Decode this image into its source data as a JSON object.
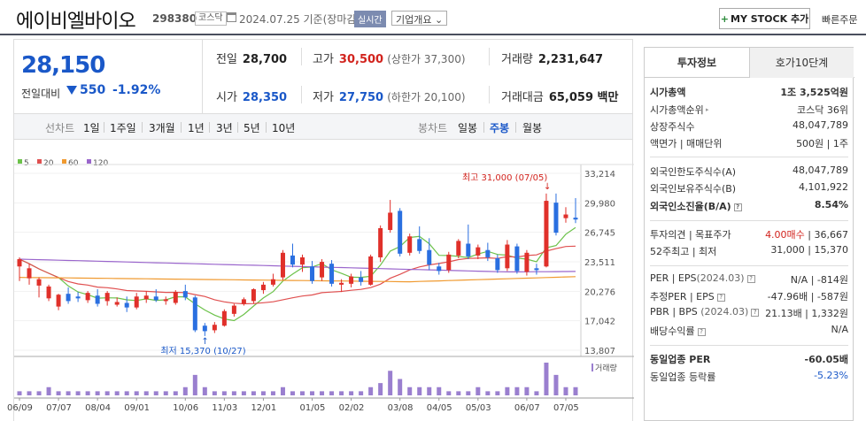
{
  "header": {
    "company_name": "에이비엘바이오",
    "code": "298380",
    "market": "코스닥",
    "date_text": "2024.07.25 기준(장마감)",
    "realtime": "실시간",
    "overview": "기업개요",
    "mystock": "MY STOCK 추가",
    "quick_order": "빠른주문"
  },
  "summary": {
    "current_price": "28,150",
    "change_label": "전일대비",
    "change_value": "550",
    "change_rate": "-1.92%",
    "prev_close_label": "전일",
    "prev_close": "28,700",
    "open_label": "시가",
    "open": "28,350",
    "high_label": "고가",
    "high": "30,500",
    "upper_limit": "(상한가 37,300)",
    "low_label": "저가",
    "low": "27,750",
    "lower_limit": "(하한가 20,100)",
    "volume_label": "거래량",
    "volume": "2,231,647",
    "amount_label": "거래대금",
    "amount": "65,059 백만"
  },
  "period": {
    "line_label": "선차트",
    "line_tabs": [
      "1일",
      "1주일",
      "3개월",
      "1년",
      "3년",
      "5년",
      "10년"
    ],
    "candle_label": "봉차트",
    "candle_tabs": [
      "일봉",
      "주봉",
      "월봉"
    ],
    "active": "주봉"
  },
  "chart": {
    "legend": [
      {
        "label": "5",
        "color": "#6cc24a"
      },
      {
        "label": "20",
        "color": "#e05050"
      },
      {
        "label": "60",
        "color": "#f09a30"
      },
      {
        "label": "120",
        "color": "#9a66cc"
      }
    ],
    "high_annotation": "최고 31,000 (07/05)",
    "low_annotation": "최저 15,370 (10/27)",
    "volume_label": "거래량",
    "up_color": "#e0302a",
    "down_color": "#2a6fe0"
  },
  "chart_data": {
    "type": "candlestick",
    "y_ticks": [
      33214,
      29980,
      26745,
      23511,
      20276,
      17042,
      13807
    ],
    "ylim": [
      13807,
      33214
    ],
    "x_tick_labels": [
      "06/09",
      "07/07",
      "08/04",
      "09/01",
      "10/06",
      "11/03",
      "12/01",
      "01/05",
      "02/02",
      "03/08",
      "04/05",
      "05/03",
      "06/07",
      "07/05"
    ],
    "weeks": 58,
    "candles": [
      [
        23000,
        24000,
        21400,
        23800
      ],
      [
        21700,
        23300,
        21000,
        22800
      ],
      [
        20900,
        21800,
        19600,
        21600
      ],
      [
        19500,
        21000,
        19200,
        20800
      ],
      [
        18600,
        20000,
        18200,
        19900
      ],
      [
        20000,
        20700,
        18900,
        19200
      ],
      [
        19700,
        20200,
        19100,
        19500
      ],
      [
        19300,
        20300,
        19000,
        20100
      ],
      [
        19800,
        20500,
        18600,
        18900
      ],
      [
        19200,
        20300,
        18700,
        20100
      ],
      [
        18800,
        19600,
        18600,
        19100
      ],
      [
        19000,
        19700,
        18000,
        18500
      ],
      [
        18500,
        20100,
        18300,
        19700
      ],
      [
        19400,
        20300,
        19000,
        19800
      ],
      [
        19700,
        20500,
        19100,
        19300
      ],
      [
        19200,
        19700,
        18800,
        19400
      ],
      [
        19000,
        20400,
        18800,
        20200
      ],
      [
        20300,
        21000,
        19300,
        19600
      ],
      [
        19600,
        19800,
        15800,
        16000
      ],
      [
        16500,
        16800,
        15370,
        15900
      ],
      [
        16000,
        16900,
        15700,
        16600
      ],
      [
        16500,
        18300,
        16400,
        18100
      ],
      [
        17800,
        18900,
        17500,
        18700
      ],
      [
        18900,
        19600,
        18700,
        19400
      ],
      [
        19200,
        20600,
        18900,
        20500
      ],
      [
        20400,
        21300,
        20000,
        21000
      ],
      [
        21000,
        22200,
        20800,
        21600
      ],
      [
        21800,
        24800,
        21500,
        24500
      ],
      [
        24200,
        25500,
        22900,
        23200
      ],
      [
        23200,
        24300,
        22400,
        24000
      ],
      [
        23000,
        23600,
        21100,
        21400
      ],
      [
        21800,
        23800,
        21400,
        23500
      ],
      [
        23300,
        23700,
        20800,
        21100
      ],
      [
        21000,
        21600,
        20200,
        21200
      ],
      [
        21100,
        22200,
        20700,
        21900
      ],
      [
        21800,
        22500,
        20900,
        21300
      ],
      [
        21000,
        24300,
        20900,
        24100
      ],
      [
        24000,
        27500,
        23500,
        27200
      ],
      [
        27000,
        30300,
        26700,
        28900
      ],
      [
        29100,
        29400,
        24100,
        24400
      ],
      [
        24500,
        26600,
        24200,
        26300
      ],
      [
        26000,
        27400,
        24400,
        24700
      ],
      [
        24800,
        26100,
        22600,
        23200
      ],
      [
        23000,
        23400,
        22100,
        22500
      ],
      [
        22600,
        24600,
        22300,
        24300
      ],
      [
        24200,
        26000,
        23900,
        25800
      ],
      [
        25500,
        27600,
        23800,
        24100
      ],
      [
        24200,
        25400,
        23800,
        25100
      ],
      [
        24800,
        25600,
        23600,
        24000
      ],
      [
        23900,
        24300,
        22300,
        22600
      ],
      [
        22800,
        25900,
        22500,
        25400
      ],
      [
        25200,
        25500,
        22200,
        22500
      ],
      [
        22400,
        24800,
        22000,
        24500
      ],
      [
        22800,
        23300,
        22100,
        22600
      ],
      [
        23000,
        31000,
        22900,
        30200
      ],
      [
        30000,
        31000,
        26400,
        26700
      ],
      [
        28300,
        29500,
        27800,
        28700
      ],
      [
        28350,
        30500,
        27750,
        28150
      ]
    ],
    "volumes": [
      1,
      1,
      1,
      2,
      1,
      1,
      1,
      1,
      1,
      1,
      1,
      1,
      1,
      1,
      1,
      1,
      1,
      2,
      5,
      2,
      1,
      1,
      1,
      1,
      1,
      1,
      1,
      2,
      1,
      1,
      1,
      1,
      1,
      1,
      1,
      1,
      2,
      3,
      6,
      4,
      2,
      2,
      2,
      2,
      1,
      1,
      1,
      2,
      1,
      1,
      2,
      2,
      2,
      1,
      8,
      5,
      2,
      2
    ]
  },
  "right_panel": {
    "tab_active": "투자정보",
    "tab_inactive": "호가10단계",
    "rows": [
      {
        "label": "시가총액",
        "value": "1조 3,525억원",
        "bold": true
      },
      {
        "label": "시가총액순위",
        "value": "코스닥 36위"
      },
      {
        "label": "상장주식수",
        "value": "48,047,789"
      },
      {
        "label": "액면가 | 매매단위",
        "value": "500원 | 1주"
      },
      {
        "label": "외국인한도주식수(A)",
        "value": "48,047,789"
      },
      {
        "label": "외국인보유주식수(B)",
        "value": "4,101,922"
      },
      {
        "label": "외국인소진율(B/A)",
        "value": "8.54%",
        "bold": true
      },
      {
        "label": "투자의견 | 목표주가",
        "value_red": "4.00매수",
        "value": " | 36,667"
      },
      {
        "label": "52주최고 | 최저",
        "value": "31,000 | 15,370"
      },
      {
        "label": "PER | EPS(2024.03)",
        "value": "N/A | -814원"
      },
      {
        "label": "추정PER | EPS",
        "value": "-47.96배 | -587원"
      },
      {
        "label": "PBR | BPS (2024.03)",
        "value": "21.13배 | 1,332원"
      },
      {
        "label": "배당수익률",
        "value": "N/A"
      },
      {
        "label": "동일업종 PER",
        "value": "-60.05배",
        "bold": true
      },
      {
        "label": "동일업종 등락률",
        "value": "-5.23%"
      }
    ]
  }
}
